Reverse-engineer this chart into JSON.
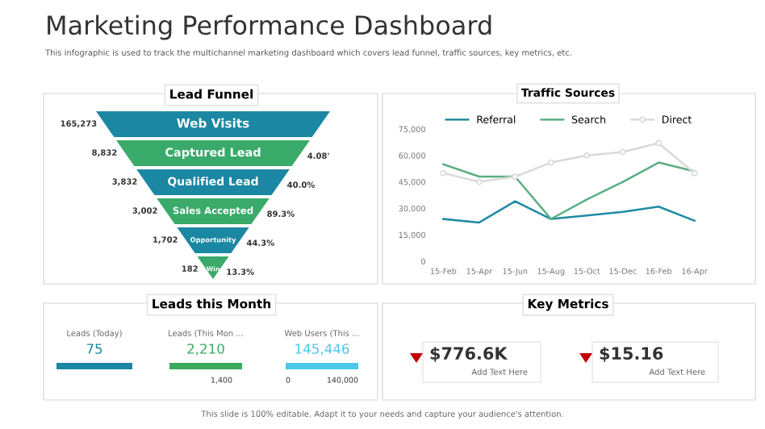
{
  "chart_data": [
    {
      "type": "other",
      "title": "Marketing Performance Dashboard",
      "subtitle": "This infographic is used to track the multichannel marketing dashboard which covers lead funnel, traffic sources, key metrics, etc.",
      "annotations": [
        "This slide is 100% editable. Adapt it to your needs and capture your audience's attention."
      ]
    },
    {
      "type": "other",
      "title": "Lead Funnel",
      "categories": [
        "Web Visits",
        "Captured Lead",
        "Qualified Lead",
        "Sales Accepted",
        "Opportunity",
        "Win"
      ],
      "value_labels": [
        "165,273",
        "8,832",
        "3,832",
        "3,002",
        "1,702",
        "182"
      ],
      "annotations": [
        "4.08'",
        "40.0%",
        "89.3%",
        "44.3%",
        "13.3%"
      ],
      "colors": [
        "#1b87a3",
        "#3aaa6a",
        "#1b87a3",
        "#3aaa6a",
        "#1b87a3",
        "#3aaa6a"
      ]
    },
    {
      "type": "line",
      "title": "Traffic Sources",
      "categories": [
        "15-Feb",
        "15-Apr",
        "15-Jun",
        "15-Aug",
        "15-Oct",
        "15-Dec",
        "16-Feb",
        "16-Apr"
      ],
      "ylim": [
        0,
        75000
      ],
      "yticks": [
        0,
        {
          "value": 15000,
          "label": "15,000"
        },
        {
          "value": 30000,
          "label": "30,000"
        },
        {
          "value": 45000,
          "label": "45,000"
        },
        {
          "value": 60000,
          "label": "60,000"
        },
        {
          "value": 75000,
          "label": "75,000"
        }
      ],
      "legend": "top",
      "grid": false,
      "series": [
        {
          "name": "Referral",
          "color": "#1f8ba3",
          "marker": "none",
          "values": [
            24000,
            22000,
            34000,
            24000,
            26000,
            28000,
            31000,
            23000
          ]
        },
        {
          "name": "Search",
          "color": "#5aaf82",
          "marker": "none",
          "values": [
            55000,
            48000,
            48000,
            24000,
            35000,
            45000,
            56000,
            51000
          ]
        },
        {
          "name": "Direct",
          "color": "#d9d9d9",
          "marker": "circle",
          "values": [
            50000,
            45000,
            48000,
            56000,
            60000,
            62000,
            67000,
            50000
          ]
        }
      ]
    },
    {
      "type": "other",
      "title": "Leads this Month",
      "categories": [
        "Leads (Today)",
        "Leads (This Mon ...",
        "Web Users (This ..."
      ],
      "value_labels": [
        "75",
        "2,210",
        "145,446"
      ],
      "colors": [
        "#1b87a3",
        "#3aaa5c",
        "#4dc8e8"
      ],
      "annotations": [
        "1,400",
        "0",
        "140,000"
      ]
    },
    {
      "type": "other",
      "title": "Key Metrics",
      "annotations": [
        "$776.6K",
        "Add Text Here",
        "$15.16",
        "Add Text Here"
      ]
    }
  ]
}
